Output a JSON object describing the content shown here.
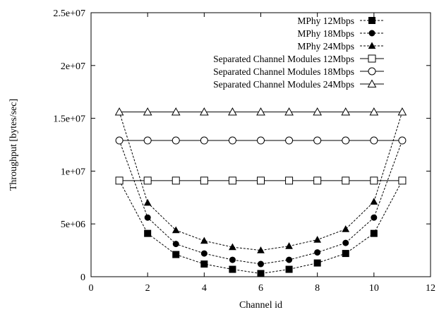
{
  "chart_data": {
    "type": "line",
    "xlabel": "Channel id",
    "ylabel": "Throughput [bytes/sec]",
    "xlim": [
      0,
      12
    ],
    "ylim": [
      0,
      25000000
    ],
    "x_ticks": [
      0,
      2,
      4,
      6,
      8,
      10,
      12
    ],
    "x_tick_labels": [
      "0",
      "2",
      "4",
      "6",
      "8",
      "10",
      "12"
    ],
    "y_ticks": [
      0,
      5000000,
      10000000,
      15000000,
      20000000,
      25000000
    ],
    "y_tick_labels": [
      "0",
      "5e+06",
      "1e+07",
      "1.5e+07",
      "2e+07",
      "2.5e+07"
    ],
    "grid": false,
    "legend_position": "top-right",
    "x": [
      1,
      2,
      3,
      4,
      5,
      6,
      7,
      8,
      9,
      10,
      11
    ],
    "series": [
      {
        "name": "MPhy 12Mbps",
        "style": "dashed",
        "marker": "filled-square",
        "values": [
          9100000,
          4100000,
          2100000,
          1200000,
          700000,
          300000,
          700000,
          1300000,
          2200000,
          4100000,
          9100000
        ]
      },
      {
        "name": "MPhy 18Mbps",
        "style": "dashed",
        "marker": "filled-circle",
        "values": [
          12900000,
          5600000,
          3100000,
          2200000,
          1600000,
          1200000,
          1600000,
          2300000,
          3200000,
          5600000,
          12900000
        ]
      },
      {
        "name": "MPhy 24Mbps",
        "style": "dashed",
        "marker": "filled-triangle",
        "values": [
          15600000,
          7000000,
          4400000,
          3400000,
          2800000,
          2500000,
          2900000,
          3500000,
          4500000,
          7100000,
          15600000
        ]
      },
      {
        "name": "Separated Channel Modules 12Mbps",
        "style": "solid",
        "marker": "open-square",
        "values": [
          9100000,
          9100000,
          9100000,
          9100000,
          9100000,
          9100000,
          9100000,
          9100000,
          9100000,
          9100000,
          9100000
        ]
      },
      {
        "name": "Separated Channel Modules 18Mbps",
        "style": "solid",
        "marker": "open-circle",
        "values": [
          12900000,
          12900000,
          12900000,
          12900000,
          12900000,
          12900000,
          12900000,
          12900000,
          12900000,
          12900000,
          12900000
        ]
      },
      {
        "name": "Separated Channel Modules 24Mbps",
        "style": "solid",
        "marker": "open-triangle",
        "values": [
          15600000,
          15600000,
          15600000,
          15600000,
          15600000,
          15600000,
          15600000,
          15600000,
          15600000,
          15600000,
          15600000
        ]
      }
    ]
  }
}
